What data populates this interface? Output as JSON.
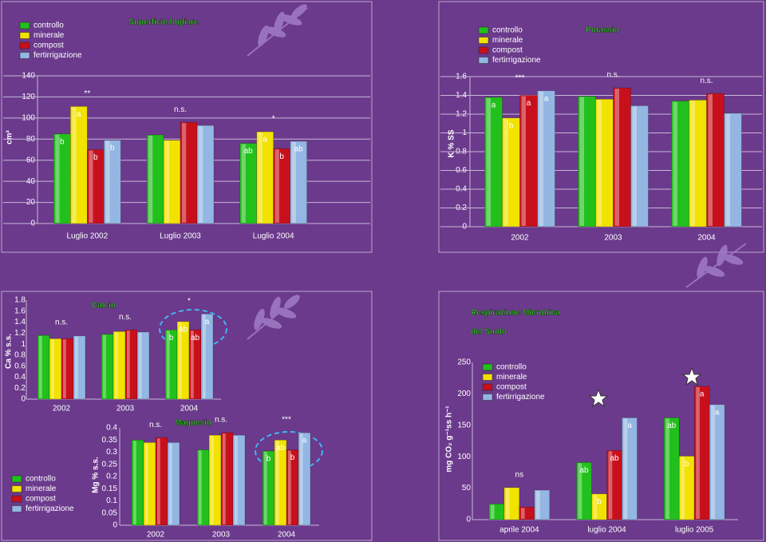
{
  "chart_data": [
    {
      "type": "bar",
      "title": "Superficie fogliare",
      "y_label": "cm²",
      "categories": [
        "Luglio 2002",
        "Luglio 2003",
        "Luglio 2004"
      ],
      "series": [
        {
          "name": "controllo",
          "color": "#22c01c",
          "values": [
            85,
            84,
            76
          ],
          "letters": [
            "b",
            null,
            "ab"
          ]
        },
        {
          "name": "minerale",
          "color": "#f2e200",
          "values": [
            111,
            79,
            87
          ],
          "letters": [
            "a",
            null,
            "a"
          ]
        },
        {
          "name": "compost",
          "color": "#c8101c",
          "values": [
            70,
            96,
            71
          ],
          "letters": [
            "b",
            null,
            "b"
          ]
        },
        {
          "name": "fertirrigazione",
          "color": "#93b6e2",
          "values": [
            79,
            93,
            78
          ],
          "letters": [
            "b",
            null,
            "ab"
          ]
        }
      ],
      "significance": [
        "**",
        "n.s.",
        "*"
      ],
      "ylim": [
        0,
        140
      ],
      "yticks": [
        0,
        20,
        40,
        60,
        80,
        100,
        120,
        140
      ],
      "grid": true
    },
    {
      "type": "bar",
      "title": "Potassio",
      "y_label": "K % SS",
      "categories": [
        "2002",
        "2003",
        "2004"
      ],
      "series": [
        {
          "name": "controllo",
          "color": "#22c01c",
          "values": [
            1.38,
            1.39,
            1.34
          ],
          "letters": [
            "a",
            null,
            null
          ]
        },
        {
          "name": "minerale",
          "color": "#f2e200",
          "values": [
            1.16,
            1.36,
            1.35
          ],
          "letters": [
            "b",
            null,
            null
          ]
        },
        {
          "name": "compost",
          "color": "#c8101c",
          "values": [
            1.4,
            1.48,
            1.42
          ],
          "letters": [
            "a",
            null,
            null
          ]
        },
        {
          "name": "fertirrigazione",
          "color": "#93b6e2",
          "values": [
            1.45,
            1.29,
            1.21
          ],
          "letters": [
            "a",
            null,
            null
          ]
        }
      ],
      "significance": [
        "***",
        "n.s.",
        "n.s."
      ],
      "ylim": [
        0,
        1.6
      ],
      "yticks": [
        0,
        0.2,
        0.4,
        0.6,
        0.8,
        1,
        1.2,
        1.4,
        1.6
      ],
      "grid": true
    },
    {
      "type": "bar",
      "title": "Calcio",
      "y_label": "Ca % s.s.",
      "categories": [
        "2002",
        "2003",
        "2004"
      ],
      "series": [
        {
          "name": "controllo",
          "color": "#22c01c",
          "values": [
            1.16,
            1.18,
            1.26
          ],
          "letters": [
            null,
            null,
            "b"
          ]
        },
        {
          "name": "minerale",
          "color": "#f2e200",
          "values": [
            1.1,
            1.23,
            1.41
          ],
          "letters": [
            null,
            null,
            "ab"
          ]
        },
        {
          "name": "compost",
          "color": "#c8101c",
          "values": [
            1.1,
            1.26,
            1.26
          ],
          "letters": [
            null,
            null,
            "ab"
          ]
        },
        {
          "name": "fertirrigazione",
          "color": "#93b6e2",
          "values": [
            1.15,
            1.22,
            1.55
          ],
          "letters": [
            null,
            null,
            "a"
          ]
        }
      ],
      "significance": [
        "n.s.",
        "n.s.",
        "*"
      ],
      "ylim": [
        0,
        1.8
      ],
      "yticks": [
        0,
        0.2,
        0.4,
        0.6,
        0.8,
        1,
        1.2,
        1.4,
        1.6,
        1.8
      ],
      "grid": false
    },
    {
      "type": "bar",
      "title": "Magnesio",
      "y_label": "Mg % s.s.",
      "categories": [
        "2002",
        "2003",
        "2004"
      ],
      "series": [
        {
          "color": "#22c01c",
          "values": [
            0.35,
            0.31,
            0.305
          ],
          "letters": [
            null,
            null,
            "b"
          ]
        },
        {
          "color": "#f2e200",
          "values": [
            0.34,
            0.37,
            0.35
          ],
          "letters": [
            null,
            null,
            "ab"
          ]
        },
        {
          "color": "#c8101c",
          "values": [
            0.36,
            0.38,
            0.31
          ],
          "letters": [
            null,
            null,
            "b"
          ]
        },
        {
          "color": "#93b6e2",
          "values": [
            0.34,
            0.37,
            0.38
          ],
          "letters": [
            null,
            null,
            "a"
          ]
        }
      ],
      "significance": [
        "n.s.",
        "n.s.",
        "***"
      ],
      "ylim": [
        0,
        0.4
      ],
      "yticks": [
        0,
        0.05,
        0.1,
        0.15,
        0.2,
        0.25,
        0.3,
        0.35,
        0.4
      ],
      "grid": false
    },
    {
      "type": "bar",
      "title": [
        "Respirazione Microbica",
        "del Suolo"
      ],
      "y_label": "mg CO₂ g⁻¹ss h⁻¹",
      "categories": [
        "aprile 2004",
        "luglio 2004",
        "luglio 2005"
      ],
      "series": [
        {
          "name": "controllo",
          "color": "#22c01c",
          "values": [
            25,
            91,
            162
          ],
          "letters": [
            null,
            "ab",
            "ab"
          ]
        },
        {
          "name": "minerale",
          "color": "#f2e200",
          "values": [
            51,
            41,
            101
          ],
          "letters": [
            null,
            "b",
            "b"
          ]
        },
        {
          "name": "compost",
          "color": "#c8101c",
          "values": [
            20,
            110,
            212
          ],
          "letters": [
            null,
            "ab",
            "a"
          ]
        },
        {
          "name": "fertirrigazione",
          "color": "#93b6e2",
          "values": [
            47,
            162,
            183
          ],
          "letters": [
            null,
            "a",
            "a"
          ]
        }
      ],
      "significance": [
        "ns",
        null,
        null
      ],
      "ylim": [
        0,
        250
      ],
      "yticks": [
        0,
        50,
        100,
        150,
        200,
        250
      ],
      "grid": false
    }
  ]
}
